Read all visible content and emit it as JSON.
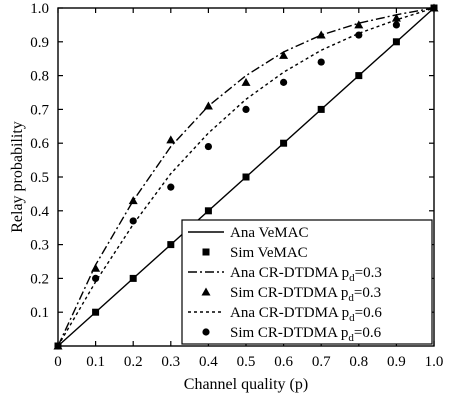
{
  "chart_data": {
    "type": "line",
    "xlabel": "Channel quality (p)",
    "ylabel": "Relay probability",
    "xlim": [
      0,
      1.0
    ],
    "ylim": [
      0,
      1.0
    ],
    "x_ticks": [
      "0",
      "0.1",
      "0.2",
      "0.3",
      "0.4",
      "0.5",
      "0.6",
      "0.7",
      "0.8",
      "0.9",
      "1.0"
    ],
    "y_ticks": [
      "0.1",
      "0.2",
      "0.3",
      "0.4",
      "0.5",
      "0.6",
      "0.7",
      "0.8",
      "0.9",
      "1.0"
    ],
    "grid": false,
    "legend_position": "bottom-right",
    "series": [
      {
        "name": "Ana VeMAC",
        "name_main": "Ana VeMAC",
        "name_sub": "",
        "name_suffix": "",
        "kind": "line",
        "dash": "solid",
        "marker": "none",
        "x": [
          0,
          1.0
        ],
        "y": [
          0,
          1.0
        ]
      },
      {
        "name": "Sim VeMAC",
        "name_main": "Sim VeMAC",
        "name_sub": "",
        "name_suffix": "",
        "kind": "markers",
        "dash": "none",
        "marker": "square",
        "x": [
          0,
          0.1,
          0.2,
          0.3,
          0.4,
          0.5,
          0.6,
          0.7,
          0.8,
          0.9,
          1.0
        ],
        "y": [
          0,
          0.1,
          0.2,
          0.3,
          0.4,
          0.5,
          0.6,
          0.7,
          0.8,
          0.9,
          1.0
        ]
      },
      {
        "name": "Ana CR-DTDMA pd=0.3",
        "name_main": "Ana CR-DTDMA p",
        "name_sub": "d",
        "name_suffix": "=0.3",
        "kind": "line",
        "dash": "dashdot",
        "marker": "none",
        "x": [
          0,
          0.1,
          0.2,
          0.3,
          0.4,
          0.5,
          0.6,
          0.7,
          0.8,
          0.9,
          1.0
        ],
        "y": [
          0,
          0.24,
          0.43,
          0.59,
          0.71,
          0.8,
          0.87,
          0.92,
          0.955,
          0.98,
          1.0
        ]
      },
      {
        "name": "Sim CR-DTDMA pd=0.3",
        "name_main": "Sim CR-DTDMA p",
        "name_sub": "d",
        "name_suffix": "=0.3",
        "kind": "markers",
        "dash": "none",
        "marker": "triangle",
        "x": [
          0,
          0.1,
          0.2,
          0.3,
          0.4,
          0.5,
          0.6,
          0.7,
          0.8,
          0.9,
          1.0
        ],
        "y": [
          0,
          0.23,
          0.43,
          0.61,
          0.71,
          0.78,
          0.86,
          0.92,
          0.95,
          0.97,
          1.0
        ]
      },
      {
        "name": "Ana CR-DTDMA pd=0.6",
        "name_main": "Ana CR-DTDMA p",
        "name_sub": "d",
        "name_suffix": "=0.6",
        "kind": "line",
        "dash": "dotted",
        "marker": "none",
        "x": [
          0,
          0.1,
          0.2,
          0.3,
          0.4,
          0.5,
          0.6,
          0.7,
          0.8,
          0.9,
          1.0
        ],
        "y": [
          0,
          0.19,
          0.36,
          0.51,
          0.63,
          0.73,
          0.81,
          0.875,
          0.925,
          0.965,
          1.0
        ]
      },
      {
        "name": "Sim CR-DTDMA pd=0.6",
        "name_main": "Sim CR-DTDMA p",
        "name_sub": "d",
        "name_suffix": "=0.6",
        "kind": "markers",
        "dash": "none",
        "marker": "circle",
        "x": [
          0,
          0.1,
          0.2,
          0.3,
          0.4,
          0.5,
          0.6,
          0.7,
          0.8,
          0.9,
          1.0
        ],
        "y": [
          0,
          0.2,
          0.37,
          0.47,
          0.59,
          0.7,
          0.78,
          0.84,
          0.92,
          0.95,
          1.0
        ]
      }
    ]
  }
}
